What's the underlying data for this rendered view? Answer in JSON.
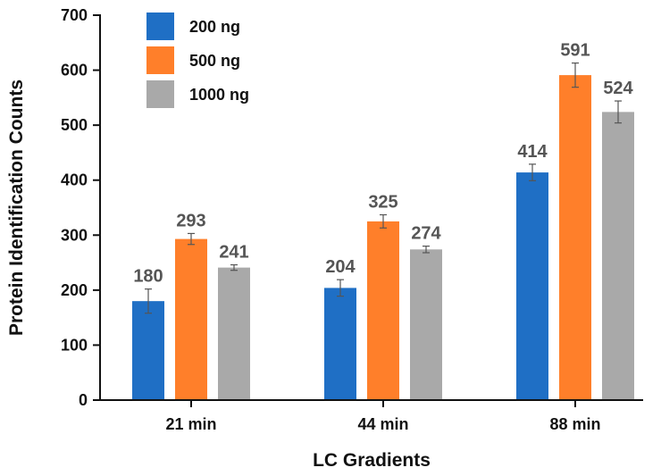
{
  "chart_data": {
    "type": "bar",
    "title": "",
    "xlabel": "LC Gradients",
    "ylabel": "Protein Identification Counts",
    "categories": [
      "21 min",
      "44 min",
      "88 min"
    ],
    "ylim": [
      0,
      700
    ],
    "yticks": [
      0,
      100,
      200,
      300,
      400,
      500,
      600,
      700
    ],
    "grid": false,
    "legend_position": "top-left",
    "series": [
      {
        "name": "200 ng",
        "color": "#1f6fc5",
        "values": [
          180,
          204,
          414
        ],
        "errors": [
          22,
          15,
          15
        ]
      },
      {
        "name": "500 ng",
        "color": "#ff7f2a",
        "values": [
          293,
          325,
          591
        ],
        "errors": [
          10,
          12,
          22
        ]
      },
      {
        "name": "1000 ng",
        "color": "#a9a9a9",
        "values": [
          241,
          274,
          524
        ],
        "errors": [
          5,
          6,
          20
        ]
      }
    ]
  }
}
